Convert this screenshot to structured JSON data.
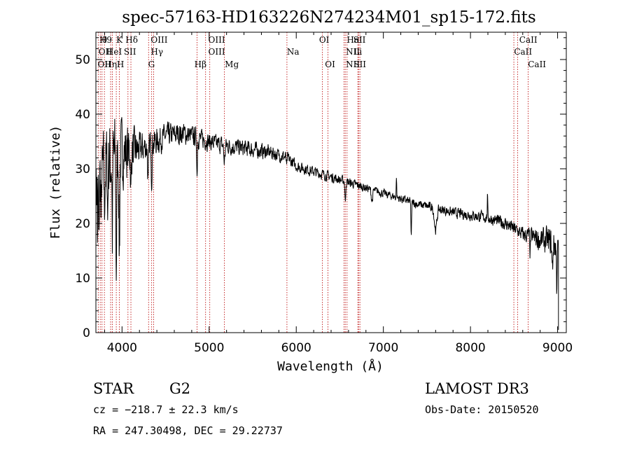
{
  "chart_data": {
    "type": "line",
    "title": "spec-57163-HD163226N274234M01_sp15-172.fits",
    "xlabel": "Wavelength (Å)",
    "ylabel": "Flux (relative)",
    "xlim": [
      3700,
      9100
    ],
    "ylim": [
      0,
      55
    ],
    "xticks": [
      4000,
      5000,
      6000,
      7000,
      8000,
      9000
    ],
    "xtick_labels": [
      "4000",
      "5000",
      "6000",
      "7000",
      "8000",
      "9000"
    ],
    "yticks": [
      0,
      10,
      20,
      30,
      40,
      50
    ],
    "ytick_labels": [
      "0",
      "10",
      "20",
      "30",
      "40",
      "50"
    ],
    "grid": false,
    "series": [
      {
        "name": "spectrum",
        "noise_seed": 7,
        "continuum": [
          [
            3700,
            27
          ],
          [
            3800,
            30
          ],
          [
            3900,
            32
          ],
          [
            4000,
            33
          ],
          [
            4200,
            33.5
          ],
          [
            4400,
            35
          ],
          [
            4500,
            36
          ],
          [
            4700,
            36.5
          ],
          [
            4900,
            35.5
          ],
          [
            5100,
            34.5
          ],
          [
            5300,
            34
          ],
          [
            5500,
            33.5
          ],
          [
            5700,
            33
          ],
          [
            5900,
            32
          ],
          [
            6000,
            30.5
          ],
          [
            6200,
            29.5
          ],
          [
            6400,
            28.5
          ],
          [
            6600,
            27.5
          ],
          [
            6800,
            26.5
          ],
          [
            7000,
            25.5
          ],
          [
            7200,
            24.5
          ],
          [
            7400,
            23.5
          ],
          [
            7600,
            22.8
          ],
          [
            7800,
            22
          ],
          [
            8000,
            21.5
          ],
          [
            8200,
            21
          ],
          [
            8400,
            20
          ],
          [
            8600,
            18
          ],
          [
            8800,
            17
          ],
          [
            8950,
            16.5
          ],
          [
            9010,
            15
          ]
        ],
        "noise_amp": [
          [
            3700,
            9
          ],
          [
            3900,
            11
          ],
          [
            4000,
            8
          ],
          [
            4200,
            4
          ],
          [
            4500,
            3
          ],
          [
            5000,
            2.2
          ],
          [
            5500,
            2
          ],
          [
            6000,
            1.4
          ],
          [
            6500,
            1.2
          ],
          [
            7000,
            1
          ],
          [
            8000,
            1.3
          ],
          [
            8600,
            1.8
          ],
          [
            9000,
            4
          ]
        ],
        "features": [
          {
            "x": 3720,
            "depth": 12,
            "width": 4
          },
          {
            "x": 3735,
            "depth": 15,
            "width": 4
          },
          {
            "x": 3760,
            "depth": 13,
            "width": 4
          },
          {
            "x": 3798,
            "depth": 9,
            "width": 4
          },
          {
            "x": 3835,
            "depth": 10,
            "width": 4
          },
          {
            "x": 3889,
            "depth": 14,
            "width": 5
          },
          {
            "x": 3934,
            "depth": 20,
            "width": 7
          },
          {
            "x": 3969,
            "depth": 18,
            "width": 7
          },
          {
            "x": 4102,
            "depth": 8,
            "width": 6
          },
          {
            "x": 4300,
            "depth": 7,
            "width": 8
          },
          {
            "x": 4340,
            "depth": 6,
            "width": 6
          },
          {
            "x": 4861,
            "depth": 7,
            "width": 5
          },
          {
            "x": 5175,
            "depth": 3,
            "width": 10
          },
          {
            "x": 5890,
            "depth": 2,
            "width": 5
          },
          {
            "x": 6563,
            "depth": 4,
            "width": 6
          },
          {
            "x": 6870,
            "depth": 2,
            "width": 12
          },
          {
            "x": 7320,
            "depth": 6,
            "width": 6
          },
          {
            "x": 7600,
            "depth": 4,
            "width": 20
          },
          {
            "x": 7150,
            "depth": -4,
            "width": 4
          },
          {
            "x": 8195,
            "depth": -4,
            "width": 4
          },
          {
            "x": 8685,
            "depth": 3,
            "width": 5
          },
          {
            "x": 8940,
            "depth": 5,
            "width": 8
          },
          {
            "x": 8990,
            "depth": 7,
            "width": 5
          }
        ]
      }
    ],
    "line_marks": [
      {
        "x": 3727,
        "label": "OII"
      },
      {
        "x": 3750,
        "label": "H9"
      },
      {
        "x": 3770,
        "label": "Hθ"
      },
      {
        "x": 3798,
        "label": "Hη"
      },
      {
        "x": 3869,
        "label": "HeI"
      },
      {
        "x": 3889,
        "label": "SII"
      },
      {
        "x": 3934,
        "label": "K"
      },
      {
        "x": 3969,
        "label": "H"
      },
      {
        "x": 4102,
        "label": "Hδ"
      },
      {
        "x": 4068,
        "label": "SII"
      },
      {
        "x": 4305,
        "label": "G"
      },
      {
        "x": 4340,
        "label": "Hγ"
      },
      {
        "x": 4363,
        "label": "OIII"
      },
      {
        "x": 4861,
        "label": "Hβ"
      },
      {
        "x": 4959,
        "label": "OIII"
      },
      {
        "x": 5007,
        "label": "OIII"
      },
      {
        "x": 5175,
        "label": "Mg"
      },
      {
        "x": 5893,
        "label": "Na"
      },
      {
        "x": 6300,
        "label": "OI"
      },
      {
        "x": 6364,
        "label": "OI"
      },
      {
        "x": 6548,
        "label": "NII"
      },
      {
        "x": 6563,
        "label": "Hα"
      },
      {
        "x": 6583,
        "label": "NII"
      },
      {
        "x": 6707,
        "label": "Li"
      },
      {
        "x": 6716,
        "label": "SII"
      },
      {
        "x": 6731,
        "label": "SII"
      },
      {
        "x": 8498,
        "label": "CaII"
      },
      {
        "x": 8542,
        "label": "CaII"
      },
      {
        "x": 8662,
        "label": "CaII"
      }
    ],
    "line_label_rows": [
      [
        {
          "x": 3740,
          "label": "H9"
        },
        {
          "x": 3770,
          "label": "θ"
        },
        {
          "x": 3934,
          "label": "K"
        },
        {
          "x": 4040,
          "label": "Hδ"
        },
        {
          "x": 4330,
          "label": "OIII"
        },
        {
          "x": 4990,
          "label": "OIII"
        },
        {
          "x": 6262,
          "label": "OI"
        },
        {
          "x": 6580,
          "label": "Hα"
        },
        {
          "x": 6655,
          "label": "SII"
        },
        {
          "x": 8560,
          "label": "CaII"
        }
      ],
      [
        {
          "x": 3730,
          "label": "OII"
        },
        {
          "x": 3820,
          "label": "HeI"
        },
        {
          "x": 4020,
          "label": "SII"
        },
        {
          "x": 4330,
          "label": "Hγ"
        },
        {
          "x": 4990,
          "label": "OIII"
        },
        {
          "x": 5893,
          "label": "Na"
        },
        {
          "x": 6570,
          "label": "NII"
        },
        {
          "x": 6660,
          "label": "Li"
        },
        {
          "x": 8500,
          "label": "CaII"
        }
      ],
      [
        {
          "x": 3720,
          "label": "OII"
        },
        {
          "x": 3800,
          "label": "Hη"
        },
        {
          "x": 3940,
          "label": "H"
        },
        {
          "x": 4300,
          "label": "G"
        },
        {
          "x": 4830,
          "label": "Hβ"
        },
        {
          "x": 5180,
          "label": "Mg"
        },
        {
          "x": 6330,
          "label": "OI"
        },
        {
          "x": 6570,
          "label": "NII"
        },
        {
          "x": 6660,
          "label": "SII"
        },
        {
          "x": 8660,
          "label": "CaII"
        }
      ]
    ]
  },
  "info": {
    "object_class": "STAR",
    "subclass": "G2",
    "survey": "LAMOST DR3",
    "cz": "cz = −218.7 ± 22.3 km/s",
    "obs_date": "Obs-Date: 20150520",
    "coords": "RA = 247.30498, DEC =  29.22737"
  }
}
